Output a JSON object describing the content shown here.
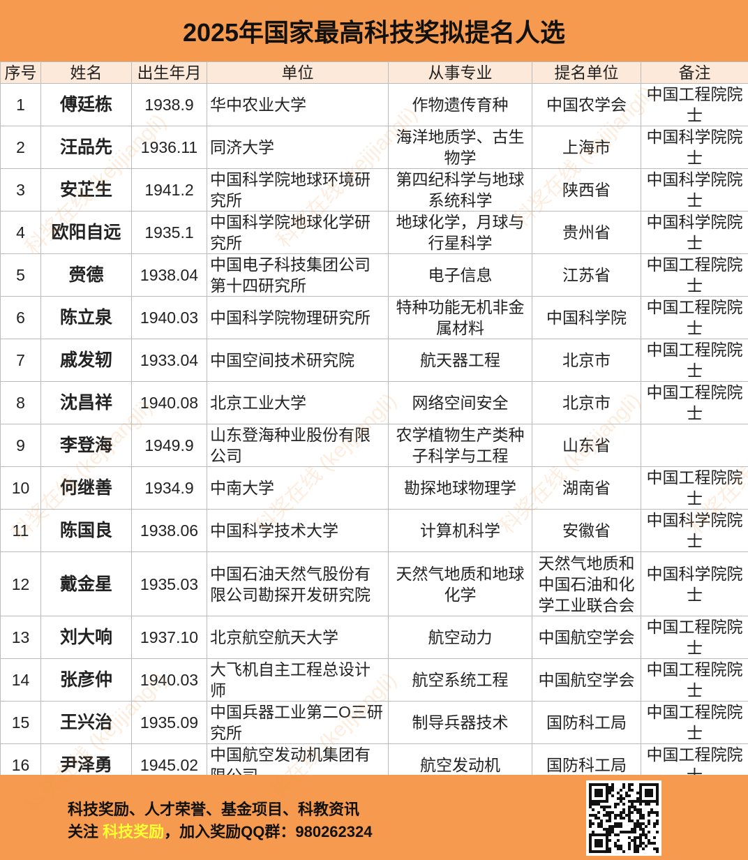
{
  "header": {
    "title": "2025年国家最高科技奖拟提名人选"
  },
  "table": {
    "columns": [
      "序号",
      "姓名",
      "出生年月",
      "单位",
      "从事专业",
      "提名单位",
      "备注"
    ],
    "rows": [
      [
        "1",
        "傅廷栋",
        "1938.9",
        "华中农业大学",
        "作物遗传育种",
        "中国农学会",
        "中国工程院院士"
      ],
      [
        "2",
        "汪品先",
        "1936.11",
        "同济大学",
        "海洋地质学、古生物学",
        "上海市",
        "中国科学院院士"
      ],
      [
        "3",
        "安芷生",
        "1941.2",
        "中国科学院地球环境研究所",
        "第四纪科学与地球系统科学",
        "陕西省",
        "中国科学院院士"
      ],
      [
        "4",
        "欧阳自远",
        "1935.1",
        "中国科学院地球化学研究所",
        "地球化学，月球与行星科学",
        "贵州省",
        "中国科学院院士"
      ],
      [
        "5",
        "赍德",
        "1938.04",
        "中国电子科技集团公司第十四研究所",
        "电子信息",
        "江苏省",
        "中国工程院院士"
      ],
      [
        "6",
        "陈立泉",
        "1940.03",
        "中国科学院物理研究所",
        "特种功能无机非金属材料",
        "中国科学院",
        "中国工程院院士"
      ],
      [
        "7",
        "戚发轫",
        "1933.04",
        "中国空间技术研究院",
        "航天器工程",
        "北京市",
        "中国工程院院士"
      ],
      [
        "8",
        "沈昌祥",
        "1940.08",
        "北京工业大学",
        "网络空间安全",
        "北京市",
        "中国工程院院士"
      ],
      [
        "9",
        "李登海",
        "1949.9",
        "山东登海种业股份有限公司",
        "农学植物生产类种子科学与工程",
        "山东省",
        null
      ],
      [
        "10",
        "何继善",
        "1934.9",
        "中南大学",
        "勘探地球物理学",
        "湖南省",
        "中国工程院院士"
      ],
      [
        "11",
        "陈国良",
        "1938.06",
        "中国科学技术大学",
        "计算机科学",
        "安徽省",
        "中国科学院院士"
      ],
      [
        "12",
        "戴金星",
        "1935.03",
        "中国石油天然气股份有限公司勘探开发研究院",
        "天然气地质和地球化学",
        "天然气地质和中国石油和化学工业联合会",
        "中国科学院院士"
      ],
      [
        "13",
        "刘大响",
        "1937.10",
        "北京航空航天大学",
        "航空动力",
        "中国航空学会",
        "中国工程院院士"
      ],
      [
        "14",
        "张彦仲",
        "1940.03",
        "大飞机自主工程总设计师",
        "航空系统工程",
        "中国航空学会",
        "中国工程院院士"
      ],
      [
        "15",
        "王兴治",
        "1935.09",
        "中国兵器工业第二O三研究所",
        "制导兵器技术",
        "国防科工局",
        "中国工程院院士"
      ],
      [
        "16",
        "尹泽勇",
        "1945.02",
        "中国航空发动机集团有限公司",
        "航空发动机",
        "国防科工局",
        "中国工程院院士"
      ]
    ]
  },
  "footer": {
    "line1": "科技奖励、人才荣誉、基金项目、科教资讯",
    "line2_prefix": "关注 ",
    "line2_highlight": "科技奖励",
    "line2_suffix": "，加入奖励QQ群：980262324"
  },
  "watermark": "科奖在线 (kejijiangli)"
}
